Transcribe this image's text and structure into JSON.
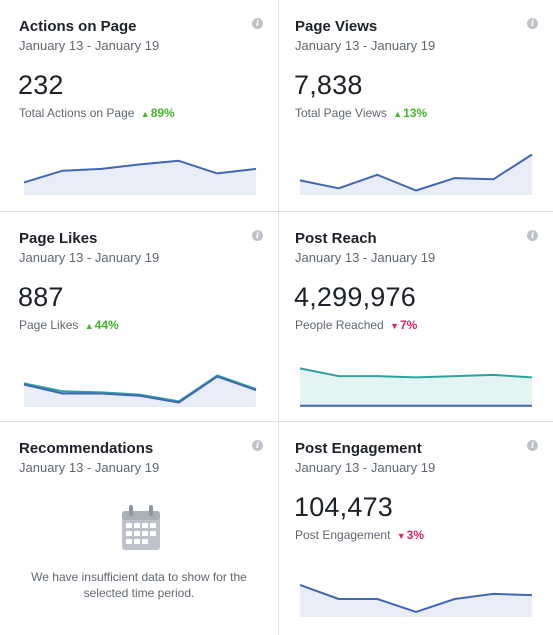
{
  "cards": [
    {
      "title": "Actions on Page",
      "date_range": "January 13 - January 19",
      "value": "232",
      "sub_label": "Total Actions on Page",
      "delta": "89%",
      "delta_direction": "up",
      "spark": {
        "type": "area",
        "line_color": "#4267b2",
        "fill_color": "#e9edf8",
        "series": [
          [
            14,
            27,
            29,
            34,
            38,
            24,
            29
          ]
        ],
        "ylim": [
          0,
          50
        ]
      }
    },
    {
      "title": "Page Views",
      "date_range": "January 13 - January 19",
      "value": "7,838",
      "sub_label": "Total Page Views",
      "delta": "13%",
      "delta_direction": "up",
      "spark": {
        "type": "area",
        "line_color": "#4267b2",
        "fill_color": "#e9edf8",
        "series": [
          [
            13,
            6,
            18,
            4,
            15,
            14,
            36
          ]
        ],
        "ylim": [
          0,
          40
        ]
      }
    },
    {
      "title": "Page Likes",
      "date_range": "January 13 - January 19",
      "value": "887",
      "sub_label": "Page Likes",
      "delta": "44%",
      "delta_direction": "up",
      "spark": {
        "type": "area",
        "line_color": "#2ea39e",
        "fill_color": "#e9edf8",
        "series": [
          [
            21,
            14,
            13,
            11,
            5,
            28,
            16
          ],
          [
            20,
            12,
            12,
            10,
            4,
            27,
            15
          ]
        ],
        "series_colors": [
          "#2ea39e",
          "#4267b2"
        ],
        "ylim": [
          0,
          40
        ]
      }
    },
    {
      "title": "Post Reach",
      "date_range": "January 13 - January 19",
      "value": "4,299,976",
      "sub_label": "People Reached",
      "delta": "7%",
      "delta_direction": "down",
      "spark": {
        "type": "area",
        "line_color": "#2ea39e",
        "fill_color": "#e3f4f2",
        "series": [
          [
            30,
            24,
            24,
            23,
            24,
            25,
            23
          ],
          [
            1,
            1,
            1,
            1,
            1,
            1,
            1
          ]
        ],
        "series_colors": [
          "#2ea39e",
          "#4267b2"
        ],
        "ylim": [
          0,
          35
        ]
      }
    },
    {
      "title": "Recommendations",
      "date_range": "January 13 - January 19",
      "empty_message": "We have insufficient data to show for the selected time period.",
      "icon": "calendar-icon"
    },
    {
      "title": "Post Engagement",
      "date_range": "January 13 - January 19",
      "value": "104,473",
      "sub_label": "Post Engagement",
      "delta": "3%",
      "delta_direction": "down",
      "spark": {
        "type": "area",
        "line_color": "#4267b2",
        "fill_color": "#e9edf8",
        "series": [
          [
            25,
            14,
            14,
            4,
            14,
            18,
            17
          ]
        ],
        "ylim": [
          0,
          35
        ]
      }
    }
  ],
  "colors": {
    "up": "#42b72a",
    "down": "#e0245e",
    "border": "#dddfe2",
    "icon": "#bec3c9"
  }
}
